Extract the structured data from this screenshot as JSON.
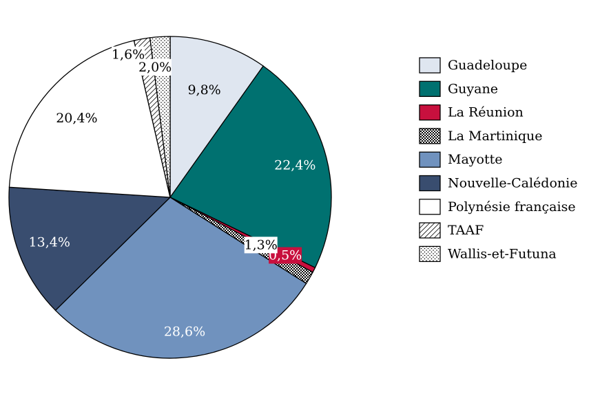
{
  "chart_data": {
    "type": "pie",
    "title": "",
    "start_angle_deg": 0,
    "direction": "clockwise",
    "slices": [
      {
        "name": "Guadeloupe",
        "value": 9.8,
        "label": "9,8%",
        "fill": "#dfe6f0",
        "pattern": "none",
        "label_color": "#000000"
      },
      {
        "name": "Guyane",
        "value": 22.4,
        "label": "22,4%",
        "fill": "#007170",
        "pattern": "none",
        "label_color": "#ffffff"
      },
      {
        "name": "La Réunion",
        "value": 0.5,
        "label": "0,5%",
        "fill": "#c8103e",
        "pattern": "none",
        "label_color": "#ffffff"
      },
      {
        "name": "La Martinique",
        "value": 1.3,
        "label": "1,3%",
        "fill": "#ffffff",
        "pattern": "checker",
        "label_color": "#000000"
      },
      {
        "name": "Mayotte",
        "value": 28.6,
        "label": "28,6%",
        "fill": "#7092be",
        "pattern": "none",
        "label_color": "#ffffff"
      },
      {
        "name": "Nouvelle-Calédonie",
        "value": 13.4,
        "label": "13,4%",
        "fill": "#394d6f",
        "pattern": "none",
        "label_color": "#ffffff"
      },
      {
        "name": "Polynésie française",
        "value": 20.4,
        "label": "20,4%",
        "fill": "#ffffff",
        "pattern": "none",
        "label_color": "#000000"
      },
      {
        "name": "TAAF",
        "value": 1.6,
        "label": "1,6%",
        "fill": "#ffffff",
        "pattern": "hatch",
        "label_color": "#000000"
      },
      {
        "name": "Wallis-et-Futuna",
        "value": 2.0,
        "label": "2,0%",
        "fill": "#ffffff",
        "pattern": "dots",
        "label_color": "#000000"
      }
    ],
    "legend_position": "right"
  }
}
